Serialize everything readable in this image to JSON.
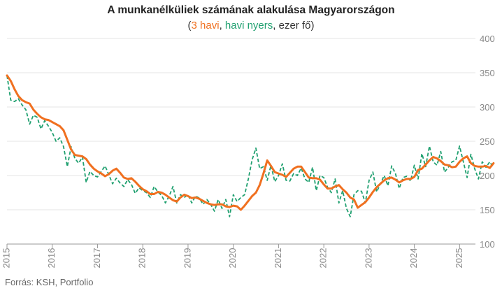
{
  "title": "A munkanélküliek számának alakulása Magyarországon",
  "subtitle": {
    "open": "(",
    "s1": "3 havi",
    "sep1": ", ",
    "s2": "havi nyers",
    "rest": ", ezer fő)"
  },
  "source": "Forrás: KSH, Portfolio",
  "colors": {
    "smooth": "#f07020",
    "raw": "#20a070",
    "grid": "#e5e5e5",
    "axis": "#999999",
    "text": "#888888"
  },
  "chart_data": {
    "type": "line",
    "title": "A munkanélküliek számának alakulása Magyarországon",
    "ylim": [
      100,
      400
    ],
    "yticks": [
      100,
      150,
      200,
      250,
      300,
      350,
      400
    ],
    "xlim": [
      2015,
      2025.35
    ],
    "xticks": [
      "2015",
      "2016",
      "2017",
      "2018",
      "2019",
      "2020",
      "2021",
      "2022",
      "2023",
      "2024",
      "2025"
    ],
    "grid": true,
    "series": [
      {
        "name": "3 havi",
        "start": 2015,
        "values": [
          346,
          338,
          326,
          316,
          310,
          307,
          305,
          296,
          290,
          285,
          282,
          281,
          278,
          275,
          272,
          266,
          252,
          238,
          230,
          229,
          228,
          224,
          216,
          210,
          206,
          203,
          199,
          202,
          207,
          210,
          204,
          197,
          195,
          196,
          191,
          185,
          180,
          177,
          173,
          173,
          176,
          175,
          172,
          168,
          164,
          162,
          168,
          172,
          170,
          167,
          168,
          166,
          163,
          160,
          158,
          157,
          158,
          158,
          155,
          154,
          156,
          155,
          150,
          156,
          163,
          170,
          175,
          186,
          203,
          222,
          214,
          205,
          203,
          201,
          198,
          204,
          210,
          213,
          213,
          205,
          197,
          196,
          196,
          194,
          187,
          181,
          181,
          184,
          186,
          180,
          175,
          168,
          165,
          153,
          157,
          161,
          168,
          176,
          183,
          188,
          193,
          196,
          197,
          194,
          190,
          193,
          195,
          195,
          198,
          208,
          210,
          216,
          222,
          227,
          225,
          221,
          216,
          215,
          212,
          213,
          220,
          225,
          228,
          218,
          214,
          213,
          213,
          214,
          211,
          218
        ]
      },
      {
        "name": "havi nyers",
        "start": 2015,
        "values": [
          346,
          310,
          308,
          312,
          303,
          296,
          275,
          288,
          285,
          268,
          280,
          272,
          263,
          250,
          255,
          242,
          213,
          242,
          225,
          218,
          227,
          190,
          206,
          200,
          198,
          206,
          214,
          201,
          188,
          196,
          189,
          184,
          194,
          187,
          174,
          182,
          178,
          175,
          168,
          184,
          176,
          171,
          160,
          170,
          184,
          160,
          172,
          168,
          172,
          160,
          170,
          167,
          158,
          165,
          158,
          148,
          165,
          152,
          165,
          140,
          172,
          162,
          168,
          172,
          195,
          223,
          240,
          210,
          213,
          193,
          215,
          191,
          200,
          217,
          193,
          192,
          203,
          200,
          211,
          195,
          190,
          212,
          178,
          200,
          197,
          183,
          175,
          195,
          160,
          178,
          152,
          140,
          172,
          178,
          177,
          160,
          193,
          205,
          176,
          188,
          200,
          185,
          214,
          203,
          181,
          197,
          199,
          192,
          215,
          195,
          232,
          213,
          243,
          220,
          215,
          235,
          205,
          212,
          220,
          222,
          243,
          220,
          197,
          231,
          210,
          195,
          220,
          212,
          220,
          211
        ]
      }
    ]
  }
}
